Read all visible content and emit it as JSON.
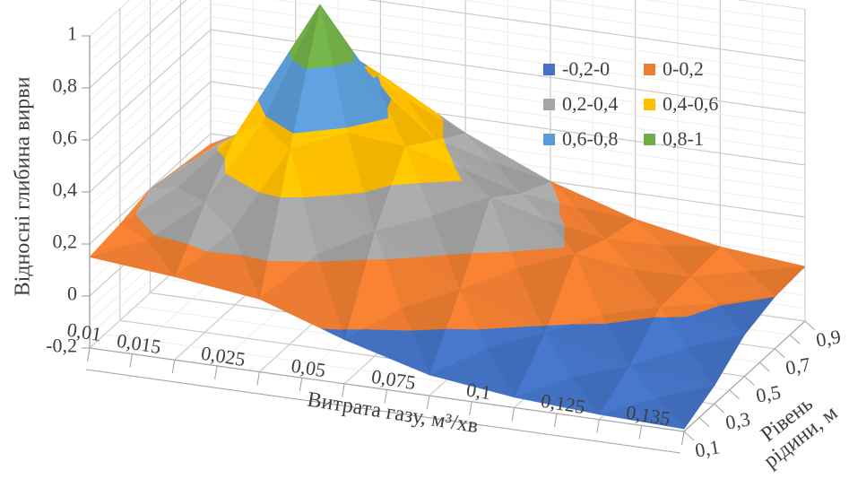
{
  "chart_data": {
    "type": "surface3d",
    "title": "",
    "xlabel": "Витрата газу, м³/хв",
    "ylabel": "Відносні глибина вирви",
    "zlabel": "Рівень рідини, м",
    "zlabel_lines": [
      "Рівень",
      "рідини, м"
    ],
    "categories": [
      0.01,
      0.015,
      0.025,
      0.05,
      0.075,
      0.1,
      0.125,
      0.135
    ],
    "categories_display": [
      "0,01",
      "0,015",
      "0,025",
      "0,05",
      "0,075",
      "0,1",
      "0,125",
      "0,135"
    ],
    "levels": [
      0.1,
      0.3,
      0.5,
      0.7,
      0.9
    ],
    "levels_display": [
      "0,1",
      "0,3",
      "0,5",
      "0,7",
      "0,9"
    ],
    "value_ticks": [
      -0.2,
      0,
      0.2,
      0.4,
      0.6,
      0.8,
      1
    ],
    "value_ticks_display": [
      "-0,2",
      "0",
      "0,2",
      "0,4",
      "0,6",
      "0,8",
      "1"
    ],
    "vmin": -0.2,
    "vmax": 1,
    "ylim": [
      -0.2,
      1
    ],
    "grid": true,
    "legend_position": "inside-top-right",
    "series": [
      {
        "name": "0,1",
        "values": [
          0.15,
          0.12,
          0.08,
          -0.03,
          -0.12,
          -0.16,
          -0.18,
          -0.19
        ]
      },
      {
        "name": "0,3",
        "values": [
          0.17,
          0.3,
          0.55,
          0.28,
          0.1,
          -0.02,
          -0.1,
          -0.13
        ]
      },
      {
        "name": "0,5",
        "values": [
          0.2,
          0.45,
          1.0,
          0.5,
          0.35,
          0.18,
          0.02,
          -0.04
        ]
      },
      {
        "name": "0,7",
        "values": [
          0.18,
          0.38,
          0.7,
          0.42,
          0.26,
          0.13,
          0.03,
          0.0
        ]
      },
      {
        "name": "0,9",
        "values": [
          0.16,
          0.33,
          0.52,
          0.34,
          0.2,
          0.1,
          0.04,
          0.01
        ]
      }
    ],
    "bands": [
      {
        "label": "-0,2-0",
        "color": "#4472C4",
        "range": [
          -0.2,
          0.0
        ]
      },
      {
        "label": "0-0,2",
        "color": "#ED7D31",
        "range": [
          0.0,
          0.2
        ]
      },
      {
        "label": "0,2-0,4",
        "color": "#A5A5A5",
        "range": [
          0.2,
          0.4
        ]
      },
      {
        "label": "0,4-0,6",
        "color": "#FFC000",
        "range": [
          0.4,
          0.6
        ]
      },
      {
        "label": "0,6-0,8",
        "color": "#5B9BD5",
        "range": [
          0.6,
          0.8
        ]
      },
      {
        "label": "0,8-1",
        "color": "#70AD47",
        "range": [
          0.8,
          1.0
        ]
      }
    ]
  },
  "colors": {
    "background": "#FFFFFF",
    "axis_text": "#3F3F3F",
    "grid_minor": "#EDEDED",
    "grid_major": "#C9C9C9",
    "axis_line": "#A6A6A6",
    "wall_edge": "#D0D0D0"
  }
}
